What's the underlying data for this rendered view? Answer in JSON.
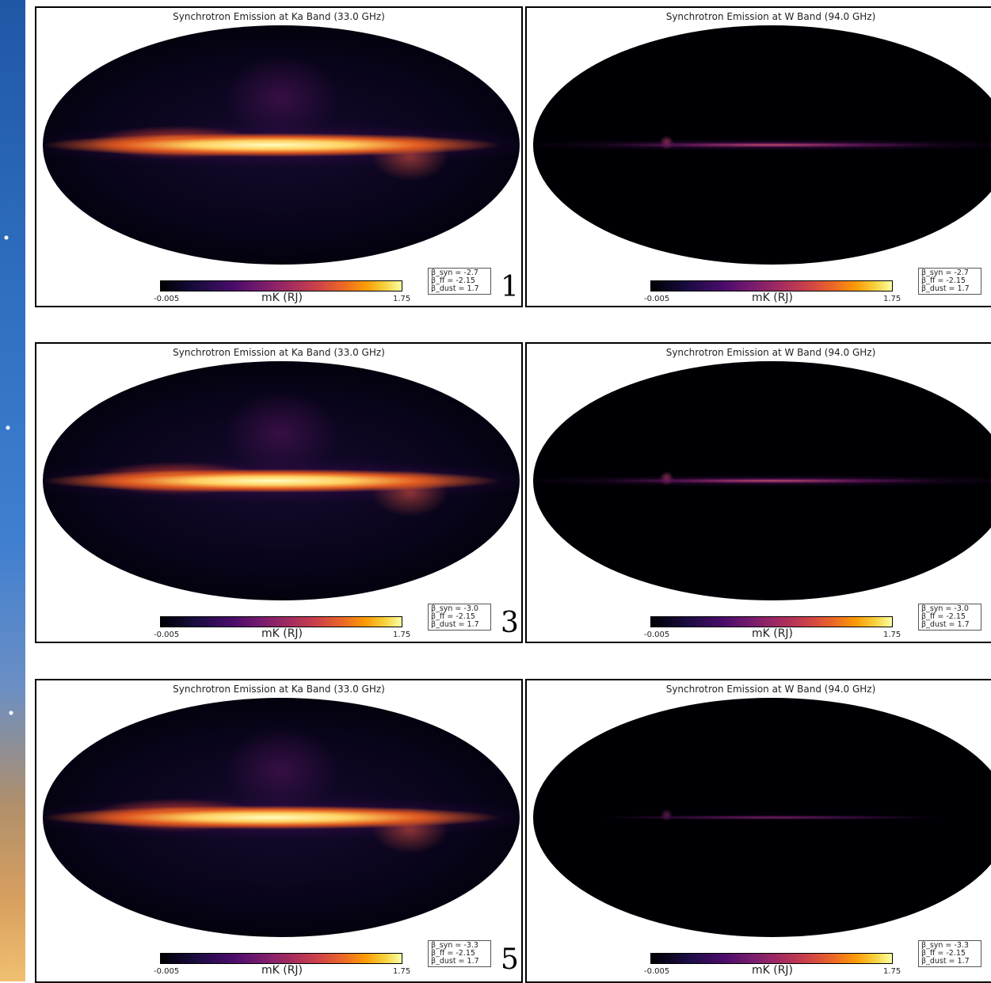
{
  "rows": [
    {
      "ka": {
        "title": "Synchrotron Emission at Ka Band (33.0 GHz)",
        "unit": "mK (RJ)",
        "cmin": "-0.005",
        "cmax": "1.75",
        "legend": [
          "β_syn = -2.7",
          "β_ff = -2.15",
          "β_dust = 1.7"
        ],
        "number": "1"
      },
      "w": {
        "title": "Synchrotron Emission at W Band (94.0 GHz)",
        "unit": "mK (RJ)",
        "cmin": "-0.005",
        "cmax": "1.75",
        "legend": [
          "β_syn = -2.7",
          "β_ff = -2.15",
          "β_dust = 1.7"
        ]
      }
    },
    {
      "ka": {
        "title": "Synchrotron Emission at Ka Band (33.0 GHz)",
        "unit": "mK (RJ)",
        "cmin": "-0.005",
        "cmax": "1.75",
        "legend": [
          "β_syn = -3.0",
          "β_ff = -2.15",
          "β_dust = 1.7"
        ],
        "number": "3"
      },
      "w": {
        "title": "Synchrotron Emission at W Band (94.0 GHz)",
        "unit": "mK (RJ)",
        "cmin": "-0.005",
        "cmax": "1.75",
        "legend": [
          "β_syn = -3.0",
          "β_ff = -2.15",
          "β_dust = 1.7"
        ]
      }
    },
    {
      "ka": {
        "title": "Synchrotron Emission at Ka Band (33.0 GHz)",
        "unit": "mK (RJ)",
        "cmin": "-0.005",
        "cmax": "1.75",
        "legend": [
          "β_syn = -3.3",
          "β_ff = -2.15",
          "β_dust = 1.7"
        ],
        "number": "5"
      },
      "w": {
        "title": "Synchrotron Emission at W Band (94.0 GHz)",
        "unit": "mK (RJ)",
        "cmin": "-0.005",
        "cmax": "1.75",
        "legend": [
          "β_syn = -3.3",
          "β_ff = -2.15",
          "β_dust = 1.7"
        ]
      }
    }
  ]
}
